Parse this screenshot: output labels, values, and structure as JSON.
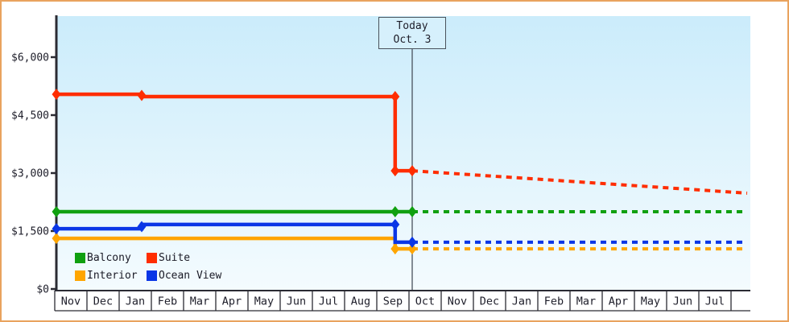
{
  "colors": {
    "frame_border": "#e9a35e",
    "plot_bg_top": "#cbecfb",
    "plot_bg_bottom": "#f4fbfe",
    "axis": "#2b2b33",
    "today_line": "#49525c",
    "today_box_fill": "#d6f0fc",
    "today_box_border": "#49525c",
    "text": "#1e1e2a"
  },
  "chart_data": {
    "type": "line",
    "x_axis": {
      "months": [
        "Nov",
        "Dec",
        "Jan",
        "Feb",
        "Mar",
        "Apr",
        "May",
        "Jun",
        "Jul",
        "Aug",
        "Sep",
        "Oct",
        "Nov",
        "Dec",
        "Jan",
        "Feb",
        "Mar",
        "Apr",
        "May",
        "Jun",
        "Jul"
      ]
    },
    "y_axis": {
      "unit": "$",
      "ticks": [
        {
          "label": "$0",
          "value": 0
        },
        {
          "label": "$1,500",
          "value": 1500
        },
        {
          "label": "$3,000",
          "value": 3000
        },
        {
          "label": "$4,500",
          "value": 4500
        },
        {
          "label": "$6,000",
          "value": 6000
        }
      ],
      "ylim": [
        0,
        7050
      ]
    },
    "today": {
      "label_line1": "Today",
      "label_line2": "Oct. 3",
      "month_index": 11.05
    },
    "legend_position": "inside-bottom-left",
    "series": [
      {
        "name": "Balcony",
        "color": "#10a010",
        "solid": [
          [
            0,
            2000
          ],
          [
            11.05,
            2000
          ]
        ],
        "dotted": [
          [
            11.05,
            2000
          ],
          [
            21.45,
            2000
          ]
        ],
        "markers": [
          [
            0,
            2000
          ],
          [
            10.52,
            2000
          ],
          [
            11.05,
            2000
          ]
        ]
      },
      {
        "name": "Suite",
        "color": "#ff2d00",
        "solid": [
          [
            0,
            5040
          ],
          [
            2.65,
            5040
          ],
          [
            2.65,
            4980
          ],
          [
            10.52,
            4980
          ],
          [
            10.52,
            3060
          ],
          [
            11.05,
            3060
          ]
        ],
        "dotted": [
          [
            11.05,
            3060
          ],
          [
            21.45,
            2480
          ]
        ],
        "markers": [
          [
            0,
            5040
          ],
          [
            2.65,
            5010
          ],
          [
            10.52,
            4980
          ],
          [
            10.52,
            3060
          ],
          [
            11.05,
            3060
          ]
        ]
      },
      {
        "name": "Interior",
        "color": "#ffa500",
        "solid": [
          [
            0,
            1310
          ],
          [
            10.52,
            1310
          ],
          [
            10.52,
            1040
          ],
          [
            11.05,
            1040
          ]
        ],
        "dotted": [
          [
            11.05,
            1040
          ],
          [
            21.45,
            1040
          ]
        ],
        "markers": [
          [
            0,
            1310
          ],
          [
            10.52,
            1040
          ],
          [
            11.05,
            1040
          ]
        ]
      },
      {
        "name": "Ocean View",
        "color": "#0a36e6",
        "solid": [
          [
            0,
            1560
          ],
          [
            2.65,
            1560
          ],
          [
            2.65,
            1670
          ],
          [
            10.52,
            1670
          ],
          [
            10.52,
            1210
          ],
          [
            11.05,
            1210
          ]
        ],
        "dotted": [
          [
            11.05,
            1210
          ],
          [
            21.45,
            1210
          ]
        ],
        "markers": [
          [
            0,
            1560
          ],
          [
            2.65,
            1615
          ],
          [
            10.52,
            1670
          ],
          [
            11.05,
            1210
          ]
        ]
      }
    ]
  }
}
